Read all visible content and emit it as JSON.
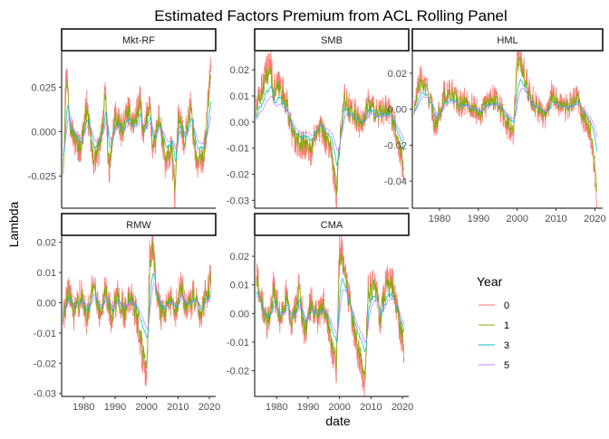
{
  "chart_data": {
    "type": "line",
    "title": "Estimated Factors Premium from ACL Rolling Panel",
    "xlabel": "date",
    "ylabel": "Lambda",
    "xlim": [
      1973,
      2022
    ],
    "x_ticks": [
      "1980",
      "1990",
      "2000",
      "2010",
      "2020"
    ],
    "legend": {
      "title": "Year",
      "placement": "right",
      "entries": [
        "0",
        "1",
        "3",
        "5"
      ]
    },
    "series_colors": {
      "0": "#F8766D",
      "1": "#7CAE00",
      "3": "#00BFC4",
      "5": "#C77CFF"
    },
    "grid": false,
    "panels": [
      {
        "label": "Mkt-RF",
        "ylim": [
          -0.043,
          0.045
        ],
        "y_ticks": [
          "-0.025",
          "0.000",
          "0.025"
        ],
        "y_tick_values": [
          -0.025,
          0.0,
          0.025
        ],
        "anchors": [
          [
            1973.5,
            -0.02
          ],
          [
            1974.5,
            0.038
          ],
          [
            1975.5,
            0.01
          ],
          [
            1977,
            -0.005
          ],
          [
            1979,
            -0.01
          ],
          [
            1981,
            0.015
          ],
          [
            1983,
            -0.018
          ],
          [
            1985,
            -0.01
          ],
          [
            1987,
            0.022
          ],
          [
            1988,
            -0.025
          ],
          [
            1990,
            0.01
          ],
          [
            1992,
            0.0
          ],
          [
            1994,
            0.012
          ],
          [
            1996,
            0.005
          ],
          [
            1998,
            0.018
          ],
          [
            1999,
            -0.005
          ],
          [
            2001,
            0.02
          ],
          [
            2002,
            -0.015
          ],
          [
            2004,
            0.01
          ],
          [
            2006,
            -0.02
          ],
          [
            2008,
            -0.01
          ],
          [
            2009,
            -0.038
          ],
          [
            2010,
            0.01
          ],
          [
            2012,
            -0.005
          ],
          [
            2014,
            0.015
          ],
          [
            2016,
            -0.02
          ],
          [
            2018,
            -0.015
          ],
          [
            2019,
            0.0
          ],
          [
            2020.5,
            0.045
          ]
        ],
        "smooth": {
          "1": 0.55,
          "3": 0.3,
          "5": 0.18
        },
        "smooth_scale": {
          "0": 1.0,
          "1": 0.85,
          "3": 0.55,
          "5": 0.4
        },
        "noise": 0.009
      },
      {
        "label": "SMB",
        "ylim": [
          -0.033,
          0.027
        ],
        "y_ticks": [
          "-0.03",
          "-0.02",
          "-0.01",
          "0.00",
          "0.01",
          "0.02"
        ],
        "y_tick_values": [
          -0.03,
          -0.02,
          -0.01,
          0.0,
          0.01,
          0.02
        ],
        "anchors": [
          [
            1973.5,
            0.005
          ],
          [
            1975,
            0.012
          ],
          [
            1977,
            0.02
          ],
          [
            1978,
            0.024
          ],
          [
            1979,
            0.012
          ],
          [
            1981,
            0.015
          ],
          [
            1983,
            0.008
          ],
          [
            1985,
            -0.005
          ],
          [
            1987,
            -0.01
          ],
          [
            1989,
            -0.008
          ],
          [
            1991,
            -0.012
          ],
          [
            1993,
            0.0
          ],
          [
            1995,
            -0.005
          ],
          [
            1997,
            -0.01
          ],
          [
            1998,
            -0.02
          ],
          [
            1999,
            -0.03
          ],
          [
            2000,
            -0.01
          ],
          [
            2001,
            0.01
          ],
          [
            2003,
            0.005
          ],
          [
            2005,
            0.003
          ],
          [
            2007,
            -0.002
          ],
          [
            2009,
            0.008
          ],
          [
            2011,
            0.005
          ],
          [
            2013,
            0.003
          ],
          [
            2015,
            0.005
          ],
          [
            2017,
            0.002
          ],
          [
            2019,
            -0.01
          ],
          [
            2020.5,
            -0.018
          ]
        ],
        "smooth": {
          "1": 0.55,
          "3": 0.3,
          "5": 0.18
        },
        "smooth_scale": {
          "0": 1.0,
          "1": 0.85,
          "3": 0.6,
          "5": 0.45
        },
        "noise": 0.006
      },
      {
        "label": "HML",
        "ylim": [
          -0.055,
          0.032
        ],
        "y_ticks": [
          "-0.04",
          "-0.02",
          "0.00",
          "0.02"
        ],
        "y_tick_values": [
          -0.04,
          -0.02,
          0.0,
          0.02
        ],
        "anchors": [
          [
            1973.5,
            0.0
          ],
          [
            1975,
            0.018
          ],
          [
            1977,
            0.01
          ],
          [
            1979,
            -0.01
          ],
          [
            1981,
            0.008
          ],
          [
            1983,
            0.01
          ],
          [
            1985,
            0.002
          ],
          [
            1987,
            0.005
          ],
          [
            1989,
            0.0
          ],
          [
            1991,
            -0.002
          ],
          [
            1993,
            0.008
          ],
          [
            1995,
            0.005
          ],
          [
            1997,
            -0.008
          ],
          [
            1999,
            -0.012
          ],
          [
            2000,
            0.03
          ],
          [
            2001,
            0.028
          ],
          [
            2003,
            0.01
          ],
          [
            2005,
            0.002
          ],
          [
            2007,
            -0.005
          ],
          [
            2009,
            0.01
          ],
          [
            2011,
            0.002
          ],
          [
            2013,
            0.0
          ],
          [
            2015,
            0.008
          ],
          [
            2017,
            -0.005
          ],
          [
            2019,
            -0.015
          ],
          [
            2020.5,
            -0.053
          ]
        ],
        "smooth": {
          "1": 0.55,
          "3": 0.3,
          "5": 0.18
        },
        "smooth_scale": {
          "0": 1.0,
          "1": 0.85,
          "3": 0.55,
          "5": 0.45
        },
        "noise": 0.008
      },
      {
        "label": "RMW",
        "ylim": [
          -0.031,
          0.022
        ],
        "y_ticks": [
          "-0.03",
          "-0.02",
          "-0.01",
          "0.00",
          "0.01",
          "0.02"
        ],
        "y_tick_values": [
          -0.03,
          -0.02,
          -0.01,
          0.0,
          0.01,
          0.02
        ],
        "anchors": [
          [
            1973.5,
            -0.005
          ],
          [
            1975,
            0.005
          ],
          [
            1977,
            -0.005
          ],
          [
            1979,
            0.003
          ],
          [
            1981,
            -0.005
          ],
          [
            1983,
            0.008
          ],
          [
            1985,
            -0.003
          ],
          [
            1987,
            0.005
          ],
          [
            1989,
            -0.006
          ],
          [
            1991,
            0.004
          ],
          [
            1993,
            -0.004
          ],
          [
            1995,
            0.003
          ],
          [
            1997,
            -0.005
          ],
          [
            1999,
            -0.02
          ],
          [
            2000,
            -0.029
          ],
          [
            2001,
            0.015
          ],
          [
            2002,
            0.02
          ],
          [
            2003,
            0.005
          ],
          [
            2005,
            -0.005
          ],
          [
            2007,
            0.002
          ],
          [
            2009,
            -0.004
          ],
          [
            2011,
            0.006
          ],
          [
            2013,
            -0.003
          ],
          [
            2015,
            0.002
          ],
          [
            2017,
            -0.005
          ],
          [
            2019,
            0.003
          ],
          [
            2020.5,
            0.008
          ]
        ],
        "smooth": {
          "1": 0.55,
          "3": 0.3,
          "5": 0.18
        },
        "smooth_scale": {
          "0": 1.0,
          "1": 0.85,
          "3": 0.5,
          "5": 0.4
        },
        "noise": 0.006
      },
      {
        "label": "CMA",
        "ylim": [
          -0.029,
          0.027
        ],
        "y_ticks": [
          "-0.02",
          "-0.01",
          "0.00",
          "0.01",
          "0.02"
        ],
        "y_tick_values": [
          -0.02,
          -0.01,
          0.0,
          0.01,
          0.02
        ],
        "anchors": [
          [
            1973.5,
            0.015
          ],
          [
            1975,
            0.005
          ],
          [
            1977,
            -0.005
          ],
          [
            1979,
            0.01
          ],
          [
            1981,
            -0.002
          ],
          [
            1983,
            0.006
          ],
          [
            1985,
            -0.004
          ],
          [
            1987,
            0.008
          ],
          [
            1989,
            -0.006
          ],
          [
            1991,
            0.004
          ],
          [
            1993,
            -0.002
          ],
          [
            1995,
            0.003
          ],
          [
            1997,
            -0.008
          ],
          [
            1999,
            -0.02
          ],
          [
            2000,
            0.025
          ],
          [
            2001,
            0.02
          ],
          [
            2003,
            0.005
          ],
          [
            2005,
            -0.008
          ],
          [
            2007,
            -0.02
          ],
          [
            2008,
            -0.026
          ],
          [
            2009,
            0.008
          ],
          [
            2011,
            0.012
          ],
          [
            2013,
            -0.002
          ],
          [
            2015,
            0.012
          ],
          [
            2017,
            0.01
          ],
          [
            2019,
            -0.004
          ],
          [
            2020.5,
            -0.012
          ]
        ],
        "smooth": {
          "1": 0.55,
          "3": 0.3,
          "5": 0.18
        },
        "smooth_scale": {
          "0": 1.0,
          "1": 0.85,
          "3": 0.55,
          "5": 0.45
        },
        "noise": 0.006
      }
    ]
  }
}
